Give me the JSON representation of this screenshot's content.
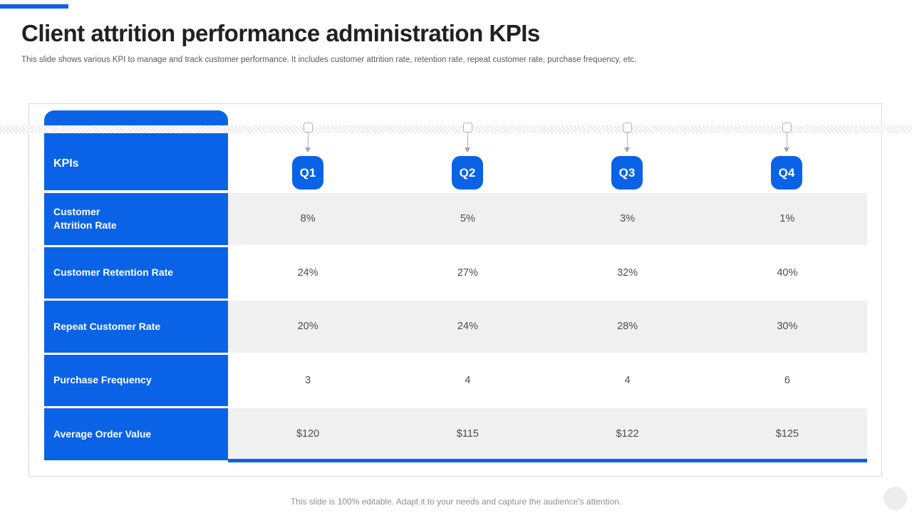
{
  "slide": {
    "title": "Client attrition performance administration KPIs",
    "subtitle": "This slide shows various KPI to manage and track customer performance. It includes customer attrition rate, retention rate, repeat customer rate, purchase frequency, etc.",
    "footer": "This slide is 100% editable. Adapt it to your needs and capture the audience's attention."
  },
  "table": {
    "header_label": "KPIs",
    "columns": [
      "Q1",
      "Q2",
      "Q3",
      "Q4"
    ],
    "rows": [
      {
        "label": "Customer\nAttrition Rate",
        "values": [
          "8%",
          "5%",
          "3%",
          "1%"
        ]
      },
      {
        "label": "Customer Retention Rate",
        "values": [
          "24%",
          "27%",
          "32%",
          "40%"
        ]
      },
      {
        "label": "Repeat Customer Rate",
        "values": [
          "20%",
          "24%",
          "28%",
          "30%"
        ]
      },
      {
        "label": "Purchase Frequency",
        "values": [
          "3",
          "4",
          "4",
          "6"
        ]
      },
      {
        "label": "Average Order Value",
        "values": [
          "$120",
          "$115",
          "$122",
          "$125"
        ]
      }
    ]
  },
  "colors": {
    "accent_blue": "#0A63E6",
    "row_alt_gray": "#F0F0F0",
    "panel_border": "#D9D9D9"
  }
}
